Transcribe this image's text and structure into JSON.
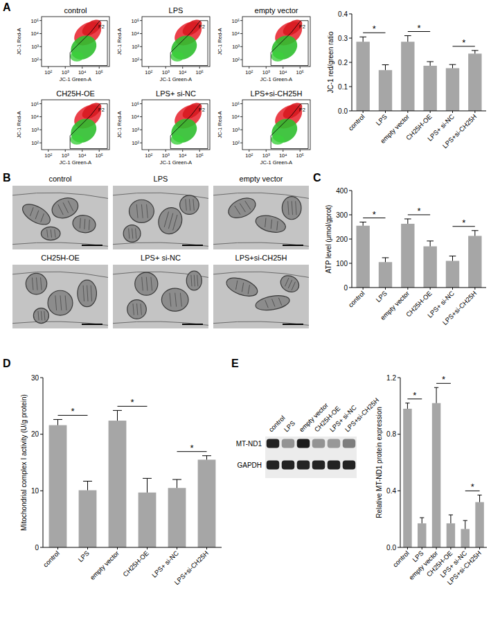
{
  "chart_data": [
    {
      "type": "bar",
      "categories": [
        "control",
        "LPS",
        "empty vector",
        "CH25H-OE",
        "LPS+ si-NC",
        "LPS+si-CH25H"
      ],
      "values": [
        0.285,
        0.168,
        0.285,
        0.186,
        0.176,
        0.236
      ],
      "errors": [
        0.02,
        0.022,
        0.025,
        0.017,
        0.015,
        0.013
      ],
      "color": "#a6a6a6",
      "y_label": "JC-1 red/green ratio",
      "ylim": [
        0,
        0.4
      ],
      "yticks": [
        {
          "value": 0,
          "label": "0.0"
        },
        0.1,
        0.2,
        0.3,
        0.4
      ],
      "comparisons": [
        {
          "categories": [
            0,
            1
          ],
          "label": "*"
        },
        {
          "categories": [
            2,
            3
          ],
          "label": "*"
        },
        {
          "categories": [
            4,
            5
          ],
          "label": "*"
        }
      ]
    },
    {
      "type": "bar",
      "categories": [
        "control",
        "LPS",
        "empty vector",
        "CH25H-OE",
        "LPS+ si-NC",
        "LPS+si-CH25H"
      ],
      "values": [
        255,
        105,
        263,
        170,
        110,
        213
      ],
      "errors": [
        15,
        18,
        20,
        22,
        20,
        22
      ],
      "color": "#a6a6a6",
      "y_label": "ATP level (μmol/gprot)",
      "ylim": [
        0,
        400
      ],
      "yticks": [
        0,
        100,
        200,
        300,
        400
      ],
      "comparisons": [
        {
          "categories": [
            0,
            1
          ],
          "label": "*"
        },
        {
          "categories": [
            2,
            3
          ],
          "label": "*"
        },
        {
          "categories": [
            4,
            5
          ],
          "label": "*"
        }
      ]
    },
    {
      "type": "bar",
      "categories": [
        "control",
        "LPS",
        "empty vector",
        "CH25H-OE",
        "LPS+ si-NC",
        "LPS+si-CH25H"
      ],
      "values": [
        21.6,
        10.1,
        22.4,
        9.7,
        10.5,
        15.5
      ],
      "errors": [
        1.0,
        1.6,
        1.8,
        2.5,
        1.5,
        0.7
      ],
      "color": "#a6a6a6",
      "y_label": "Mitochondrial complex I activity (U/g protein)",
      "ylim": [
        0,
        30
      ],
      "yticks": [
        0,
        10,
        20,
        30
      ],
      "comparisons": [
        {
          "categories": [
            0,
            1
          ],
          "label": "*"
        },
        {
          "categories": [
            2,
            3
          ],
          "label": "*"
        },
        {
          "categories": [
            4,
            5
          ],
          "label": "*"
        }
      ]
    },
    {
      "type": "bar",
      "categories": [
        "control",
        "LPS",
        "empty vector",
        "CH25H-OE",
        "LPS+ si-NC",
        "LPS+si-CH25H"
      ],
      "values": [
        0.98,
        0.17,
        1.02,
        0.17,
        0.13,
        0.32
      ],
      "errors": [
        0.04,
        0.04,
        0.11,
        0.06,
        0.06,
        0.05
      ],
      "color": "#a6a6a6",
      "y_label": "Relative MT-ND1 protein expression",
      "ylim": [
        0,
        1.2
      ],
      "yticks": [
        {
          "value": 0,
          "label": "0.0"
        },
        0.4,
        0.8,
        1.2
      ],
      "comparisons": [
        {
          "categories": [
            0,
            1
          ],
          "label": "*"
        },
        {
          "categories": [
            2,
            3
          ],
          "label": "*"
        },
        {
          "categories": [
            4,
            5
          ],
          "label": "*"
        }
      ]
    }
  ],
  "panel_letters": [
    "A",
    "B",
    "C",
    "D",
    "E"
  ],
  "flow_plots": {
    "titles": [
      "control",
      "LPS",
      "empty vector",
      "CH25H-OE",
      "LPS+ si-NC",
      "LPS+si-CH25H"
    ],
    "x_label": "JC-1 Green-A",
    "y_label": "JC-1 Red-A",
    "gate": "P2",
    "log": true,
    "xlim": [
      40,
      400000
    ],
    "ylim": [
      30,
      200000
    ],
    "xticks": [
      {
        "value": 100,
        "label": "10²"
      },
      {
        "value": 1000,
        "label": "10³"
      },
      {
        "value": 10000,
        "label": "10⁴"
      },
      {
        "value": 100000,
        "label": "10⁵"
      }
    ],
    "yticks": [
      {
        "value": 100,
        "label": "10²"
      },
      {
        "value": 1000,
        "label": "10³"
      },
      {
        "value": 10000,
        "label": "10⁴"
      },
      {
        "value": 100000,
        "label": "10⁵"
      }
    ]
  },
  "tem_images": {
    "titles": [
      "control",
      "LPS",
      "empty vector",
      "CH25H-OE",
      "LPS+ si-NC",
      "LPS+si-CH25H"
    ]
  },
  "western_blot": {
    "lanes": [
      "control",
      "LPS",
      "empty vector",
      "CH25H-OE",
      "LPS+ si-NC",
      "LPS+si-CH25H"
    ],
    "bands": [
      "MT-ND1",
      "GAPDH"
    ]
  }
}
